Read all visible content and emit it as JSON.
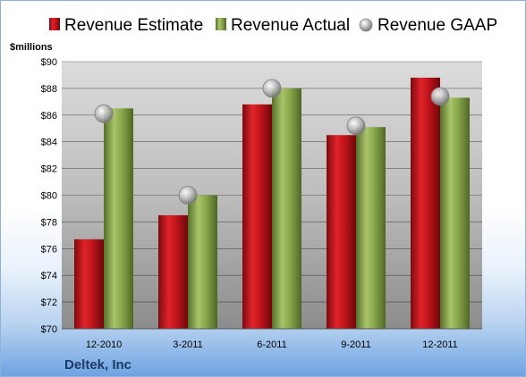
{
  "chart_data": {
    "type": "bar",
    "categories": [
      "12-2010",
      "3-2011",
      "6-2011",
      "9-2011",
      "12-2011"
    ],
    "series": [
      {
        "name": "Revenue Estimate",
        "values": [
          76.7,
          78.5,
          86.8,
          84.5,
          88.8
        ]
      },
      {
        "name": "Revenue Actual",
        "values": [
          86.5,
          80.0,
          88.0,
          85.1,
          87.3
        ]
      },
      {
        "name": "Revenue GAAP",
        "values": [
          86.1,
          80.0,
          88.0,
          85.2,
          87.4
        ],
        "marker": "circle"
      }
    ],
    "ylabel": "$millions",
    "ylim": [
      70,
      90
    ],
    "yticks": [
      "$70",
      "$72",
      "$74",
      "$76",
      "$78",
      "$80",
      "$82",
      "$84",
      "$86",
      "$88",
      "$90"
    ],
    "grid": true,
    "legend_position": "top",
    "company": "Deltek, Inc",
    "colors": {
      "estimate": "#c0141a",
      "actual": "#8aa84c",
      "gaap": "#b8b8b8"
    }
  }
}
